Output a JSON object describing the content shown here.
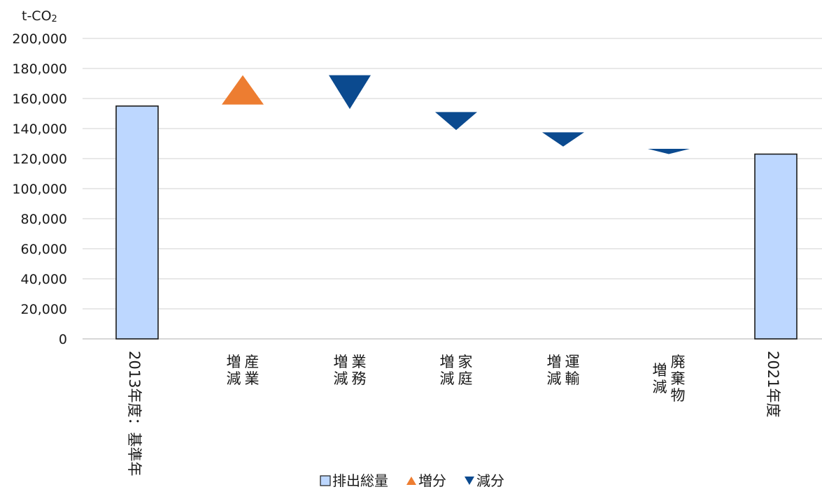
{
  "chart_data": {
    "type": "bar",
    "unit_label": "t-CO2",
    "y_ticks": [
      "0",
      "20,000",
      "40,000",
      "60,000",
      "80,000",
      "100,000",
      "120,000",
      "140,000",
      "160,000",
      "180,000",
      "200,000"
    ],
    "ylim": [
      0,
      200000
    ],
    "grid": true,
    "categories": [
      "2013年度：基準年",
      "増減 産業",
      "増減 業務",
      "増減 家庭",
      "増減 運輸",
      "増減 廃棄物",
      "2021年度"
    ],
    "series": [
      {
        "name": "排出総量",
        "marker": "bar",
        "color": "#bdd7ff",
        "values": [
          155000,
          null,
          null,
          null,
          null,
          null,
          123000
        ]
      },
      {
        "name": "増分",
        "marker": "triangle-up",
        "color": "#ed7d31",
        "ranges": [
          null,
          [
            156000,
            175500
          ],
          null,
          null,
          null,
          null,
          null
        ]
      },
      {
        "name": "減分",
        "marker": "triangle-down",
        "color": "#0b4a8f",
        "ranges": [
          null,
          null,
          [
            175500,
            153000
          ],
          [
            151000,
            139000
          ],
          [
            137500,
            128000
          ],
          [
            126500,
            123000
          ],
          null
        ]
      }
    ],
    "legend_position": "bottom"
  }
}
